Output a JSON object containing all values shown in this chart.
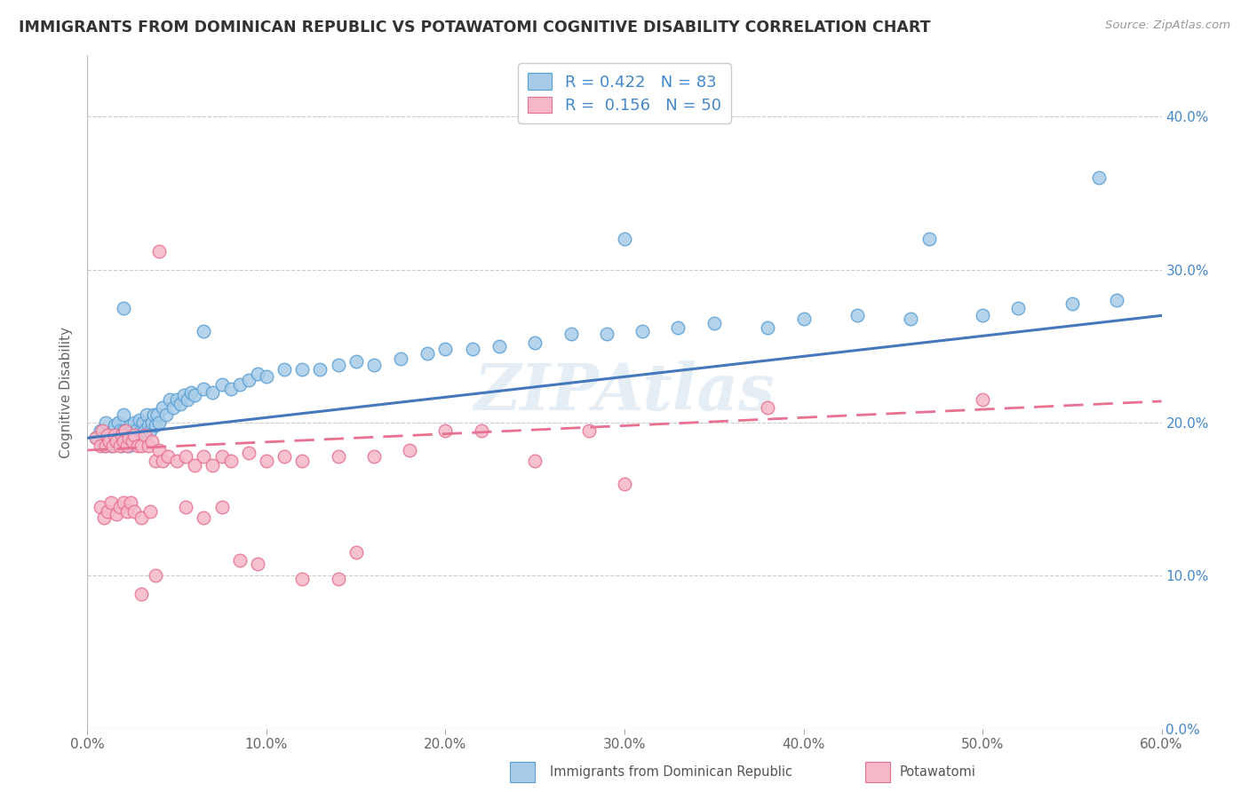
{
  "title": "IMMIGRANTS FROM DOMINICAN REPUBLIC VS POTAWATOMI COGNITIVE DISABILITY CORRELATION CHART",
  "source": "Source: ZipAtlas.com",
  "ylabel": "Cognitive Disability",
  "xlim": [
    0.0,
    0.6
  ],
  "ylim": [
    0.0,
    0.44
  ],
  "xticks": [
    0.0,
    0.1,
    0.2,
    0.3,
    0.4,
    0.5,
    0.6
  ],
  "xtick_labels": [
    "0.0%",
    "10.0%",
    "20.0%",
    "30.0%",
    "40.0%",
    "50.0%",
    "60.0%"
  ],
  "yticks": [
    0.0,
    0.1,
    0.2,
    0.3,
    0.4
  ],
  "ytick_labels_right": [
    "0.0%",
    "10.0%",
    "20.0%",
    "30.0%",
    "40.0%"
  ],
  "watermark": "ZIPAtlas",
  "blue_color": "#a8cce8",
  "pink_color": "#f5b8c8",
  "blue_edge_color": "#5a9fd4",
  "pink_edge_color": "#e87090",
  "blue_line_color": "#4477bb",
  "pink_line_color": "#e87090",
  "title_color": "#333333",
  "tick_color_right": "#4488cc",
  "background_color": "#ffffff",
  "grid_color": "#cccccc",
  "blue_x": [
    0.005,
    0.007,
    0.009,
    0.01,
    0.01,
    0.012,
    0.013,
    0.014,
    0.015,
    0.016,
    0.017,
    0.018,
    0.019,
    0.02,
    0.02,
    0.021,
    0.022,
    0.023,
    0.024,
    0.025,
    0.026,
    0.027,
    0.028,
    0.029,
    0.03,
    0.031,
    0.032,
    0.033,
    0.034,
    0.035,
    0.036,
    0.037,
    0.038,
    0.039,
    0.04,
    0.042,
    0.044,
    0.046,
    0.048,
    0.05,
    0.052,
    0.054,
    0.056,
    0.058,
    0.06,
    0.065,
    0.07,
    0.075,
    0.08,
    0.085,
    0.09,
    0.095,
    0.1,
    0.11,
    0.12,
    0.13,
    0.14,
    0.15,
    0.16,
    0.175,
    0.19,
    0.2,
    0.215,
    0.23,
    0.25,
    0.27,
    0.29,
    0.31,
    0.33,
    0.35,
    0.38,
    0.4,
    0.43,
    0.46,
    0.5,
    0.52,
    0.55,
    0.575,
    0.3,
    0.47,
    0.565,
    0.065,
    0.02
  ],
  "blue_y": [
    0.19,
    0.195,
    0.185,
    0.188,
    0.2,
    0.192,
    0.185,
    0.195,
    0.198,
    0.188,
    0.2,
    0.195,
    0.185,
    0.195,
    0.205,
    0.188,
    0.192,
    0.185,
    0.198,
    0.195,
    0.2,
    0.195,
    0.192,
    0.202,
    0.195,
    0.2,
    0.195,
    0.205,
    0.198,
    0.195,
    0.2,
    0.205,
    0.198,
    0.205,
    0.2,
    0.21,
    0.205,
    0.215,
    0.21,
    0.215,
    0.212,
    0.218,
    0.215,
    0.22,
    0.218,
    0.222,
    0.22,
    0.225,
    0.222,
    0.225,
    0.228,
    0.232,
    0.23,
    0.235,
    0.235,
    0.235,
    0.238,
    0.24,
    0.238,
    0.242,
    0.245,
    0.248,
    0.248,
    0.25,
    0.252,
    0.258,
    0.258,
    0.26,
    0.262,
    0.265,
    0.262,
    0.268,
    0.27,
    0.268,
    0.27,
    0.275,
    0.278,
    0.28,
    0.32,
    0.32,
    0.36,
    0.26,
    0.275
  ],
  "pink_x": [
    0.005,
    0.007,
    0.008,
    0.01,
    0.011,
    0.012,
    0.014,
    0.015,
    0.016,
    0.018,
    0.019,
    0.02,
    0.021,
    0.022,
    0.023,
    0.025,
    0.026,
    0.028,
    0.03,
    0.032,
    0.034,
    0.036,
    0.038,
    0.04,
    0.042,
    0.045,
    0.05,
    0.055,
    0.06,
    0.065,
    0.07,
    0.075,
    0.08,
    0.09,
    0.1,
    0.11,
    0.12,
    0.14,
    0.16,
    0.18,
    0.2,
    0.22,
    0.25,
    0.28,
    0.3,
    0.38,
    0.5,
    0.038,
    0.03,
    0.04
  ],
  "pink_y": [
    0.19,
    0.185,
    0.195,
    0.185,
    0.192,
    0.188,
    0.185,
    0.192,
    0.188,
    0.185,
    0.192,
    0.188,
    0.195,
    0.185,
    0.19,
    0.188,
    0.192,
    0.185,
    0.185,
    0.192,
    0.185,
    0.188,
    0.175,
    0.182,
    0.175,
    0.178,
    0.175,
    0.178,
    0.172,
    0.178,
    0.172,
    0.178,
    0.175,
    0.18,
    0.175,
    0.178,
    0.175,
    0.178,
    0.178,
    0.182,
    0.195,
    0.195,
    0.175,
    0.195,
    0.16,
    0.21,
    0.215,
    0.1,
    0.088,
    0.312
  ],
  "pink_low_x": [
    0.007,
    0.009,
    0.011,
    0.013,
    0.016,
    0.018,
    0.02,
    0.022,
    0.024,
    0.026,
    0.03,
    0.035,
    0.055,
    0.065,
    0.075,
    0.085,
    0.095,
    0.12,
    0.14,
    0.15
  ],
  "pink_low_y": [
    0.145,
    0.138,
    0.142,
    0.148,
    0.14,
    0.145,
    0.148,
    0.142,
    0.148,
    0.142,
    0.138,
    0.142,
    0.145,
    0.138,
    0.145,
    0.11,
    0.108,
    0.098,
    0.098,
    0.115
  ]
}
